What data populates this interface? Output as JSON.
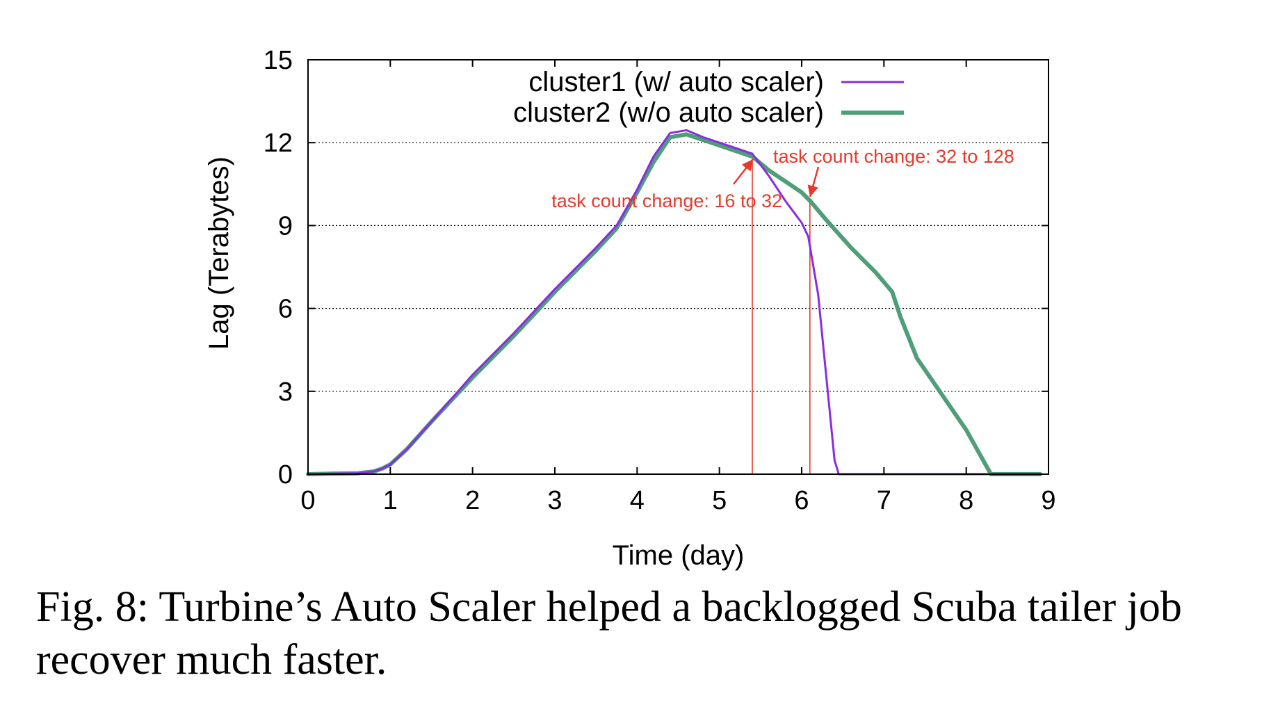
{
  "caption": "Fig. 8: Turbine’s Auto Scaler helped a backlogged Scuba tailer job recover much faster.",
  "colors": {
    "cluster1": "#8a2be2",
    "cluster2": "#4e9e78",
    "annotation": "#e8392b",
    "grid": "#000000"
  },
  "chart_data": {
    "type": "line",
    "title": "",
    "xlabel": "Time (day)",
    "ylabel": "Lag (Terabytes)",
    "xlim": [
      0,
      9
    ],
    "ylim": [
      0,
      15
    ],
    "xticks": [
      "0",
      "1",
      "2",
      "3",
      "4",
      "5",
      "6",
      "7",
      "8",
      "9"
    ],
    "yticks": [
      "0",
      "3",
      "6",
      "9",
      "12",
      "15"
    ],
    "grid": "horizontal dotted",
    "legend_position": "top-center",
    "series": [
      {
        "name": "cluster1 (w/ auto scaler)",
        "color": "#8a2be2",
        "points": [
          [
            0,
            0
          ],
          [
            0.3,
            0.02
          ],
          [
            0.6,
            0.03
          ],
          [
            0.8,
            0.1
          ],
          [
            0.9,
            0.2
          ],
          [
            1.0,
            0.35
          ],
          [
            1.2,
            0.9
          ],
          [
            1.5,
            1.9
          ],
          [
            2.0,
            3.6
          ],
          [
            2.5,
            5.1
          ],
          [
            3.0,
            6.7
          ],
          [
            3.5,
            8.2
          ],
          [
            3.75,
            9.0
          ],
          [
            4.0,
            10.3
          ],
          [
            4.2,
            11.5
          ],
          [
            4.4,
            12.35
          ],
          [
            4.6,
            12.45
          ],
          [
            4.8,
            12.2
          ],
          [
            5.0,
            12.0
          ],
          [
            5.2,
            11.8
          ],
          [
            5.4,
            11.6
          ],
          [
            5.6,
            10.8
          ],
          [
            5.8,
            9.9
          ],
          [
            6.0,
            9.1
          ],
          [
            6.08,
            8.6
          ],
          [
            6.2,
            6.5
          ],
          [
            6.3,
            3.5
          ],
          [
            6.4,
            0.5
          ],
          [
            6.45,
            0
          ],
          [
            7.0,
            0
          ],
          [
            8.0,
            0
          ],
          [
            8.9,
            0
          ]
        ]
      },
      {
        "name": "cluster2 (w/o auto scaler)",
        "color": "#4e9e78",
        "points": [
          [
            0,
            0
          ],
          [
            0.3,
            0.02
          ],
          [
            0.6,
            0.03
          ],
          [
            0.8,
            0.1
          ],
          [
            0.9,
            0.2
          ],
          [
            1.0,
            0.35
          ],
          [
            1.2,
            0.9
          ],
          [
            1.5,
            1.9
          ],
          [
            2.0,
            3.5
          ],
          [
            2.5,
            5.0
          ],
          [
            3.0,
            6.6
          ],
          [
            3.5,
            8.1
          ],
          [
            3.75,
            8.9
          ],
          [
            4.0,
            10.2
          ],
          [
            4.2,
            11.3
          ],
          [
            4.4,
            12.2
          ],
          [
            4.6,
            12.3
          ],
          [
            4.8,
            12.1
          ],
          [
            5.0,
            11.9
          ],
          [
            5.2,
            11.7
          ],
          [
            5.4,
            11.5
          ],
          [
            5.6,
            11.0
          ],
          [
            5.8,
            10.6
          ],
          [
            6.0,
            10.2
          ],
          [
            6.1,
            9.9
          ],
          [
            6.3,
            9.2
          ],
          [
            6.6,
            8.2
          ],
          [
            6.9,
            7.3
          ],
          [
            7.1,
            6.6
          ],
          [
            7.2,
            5.7
          ],
          [
            7.4,
            4.2
          ],
          [
            7.7,
            2.9
          ],
          [
            8.0,
            1.6
          ],
          [
            8.15,
            0.8
          ],
          [
            8.3,
            0
          ],
          [
            8.6,
            0
          ],
          [
            8.9,
            0
          ]
        ]
      }
    ],
    "annotations": [
      {
        "text": "task count change: 16 to 32",
        "x": 5.4
      },
      {
        "text": "task count change: 32 to 128",
        "x": 6.1
      }
    ]
  }
}
